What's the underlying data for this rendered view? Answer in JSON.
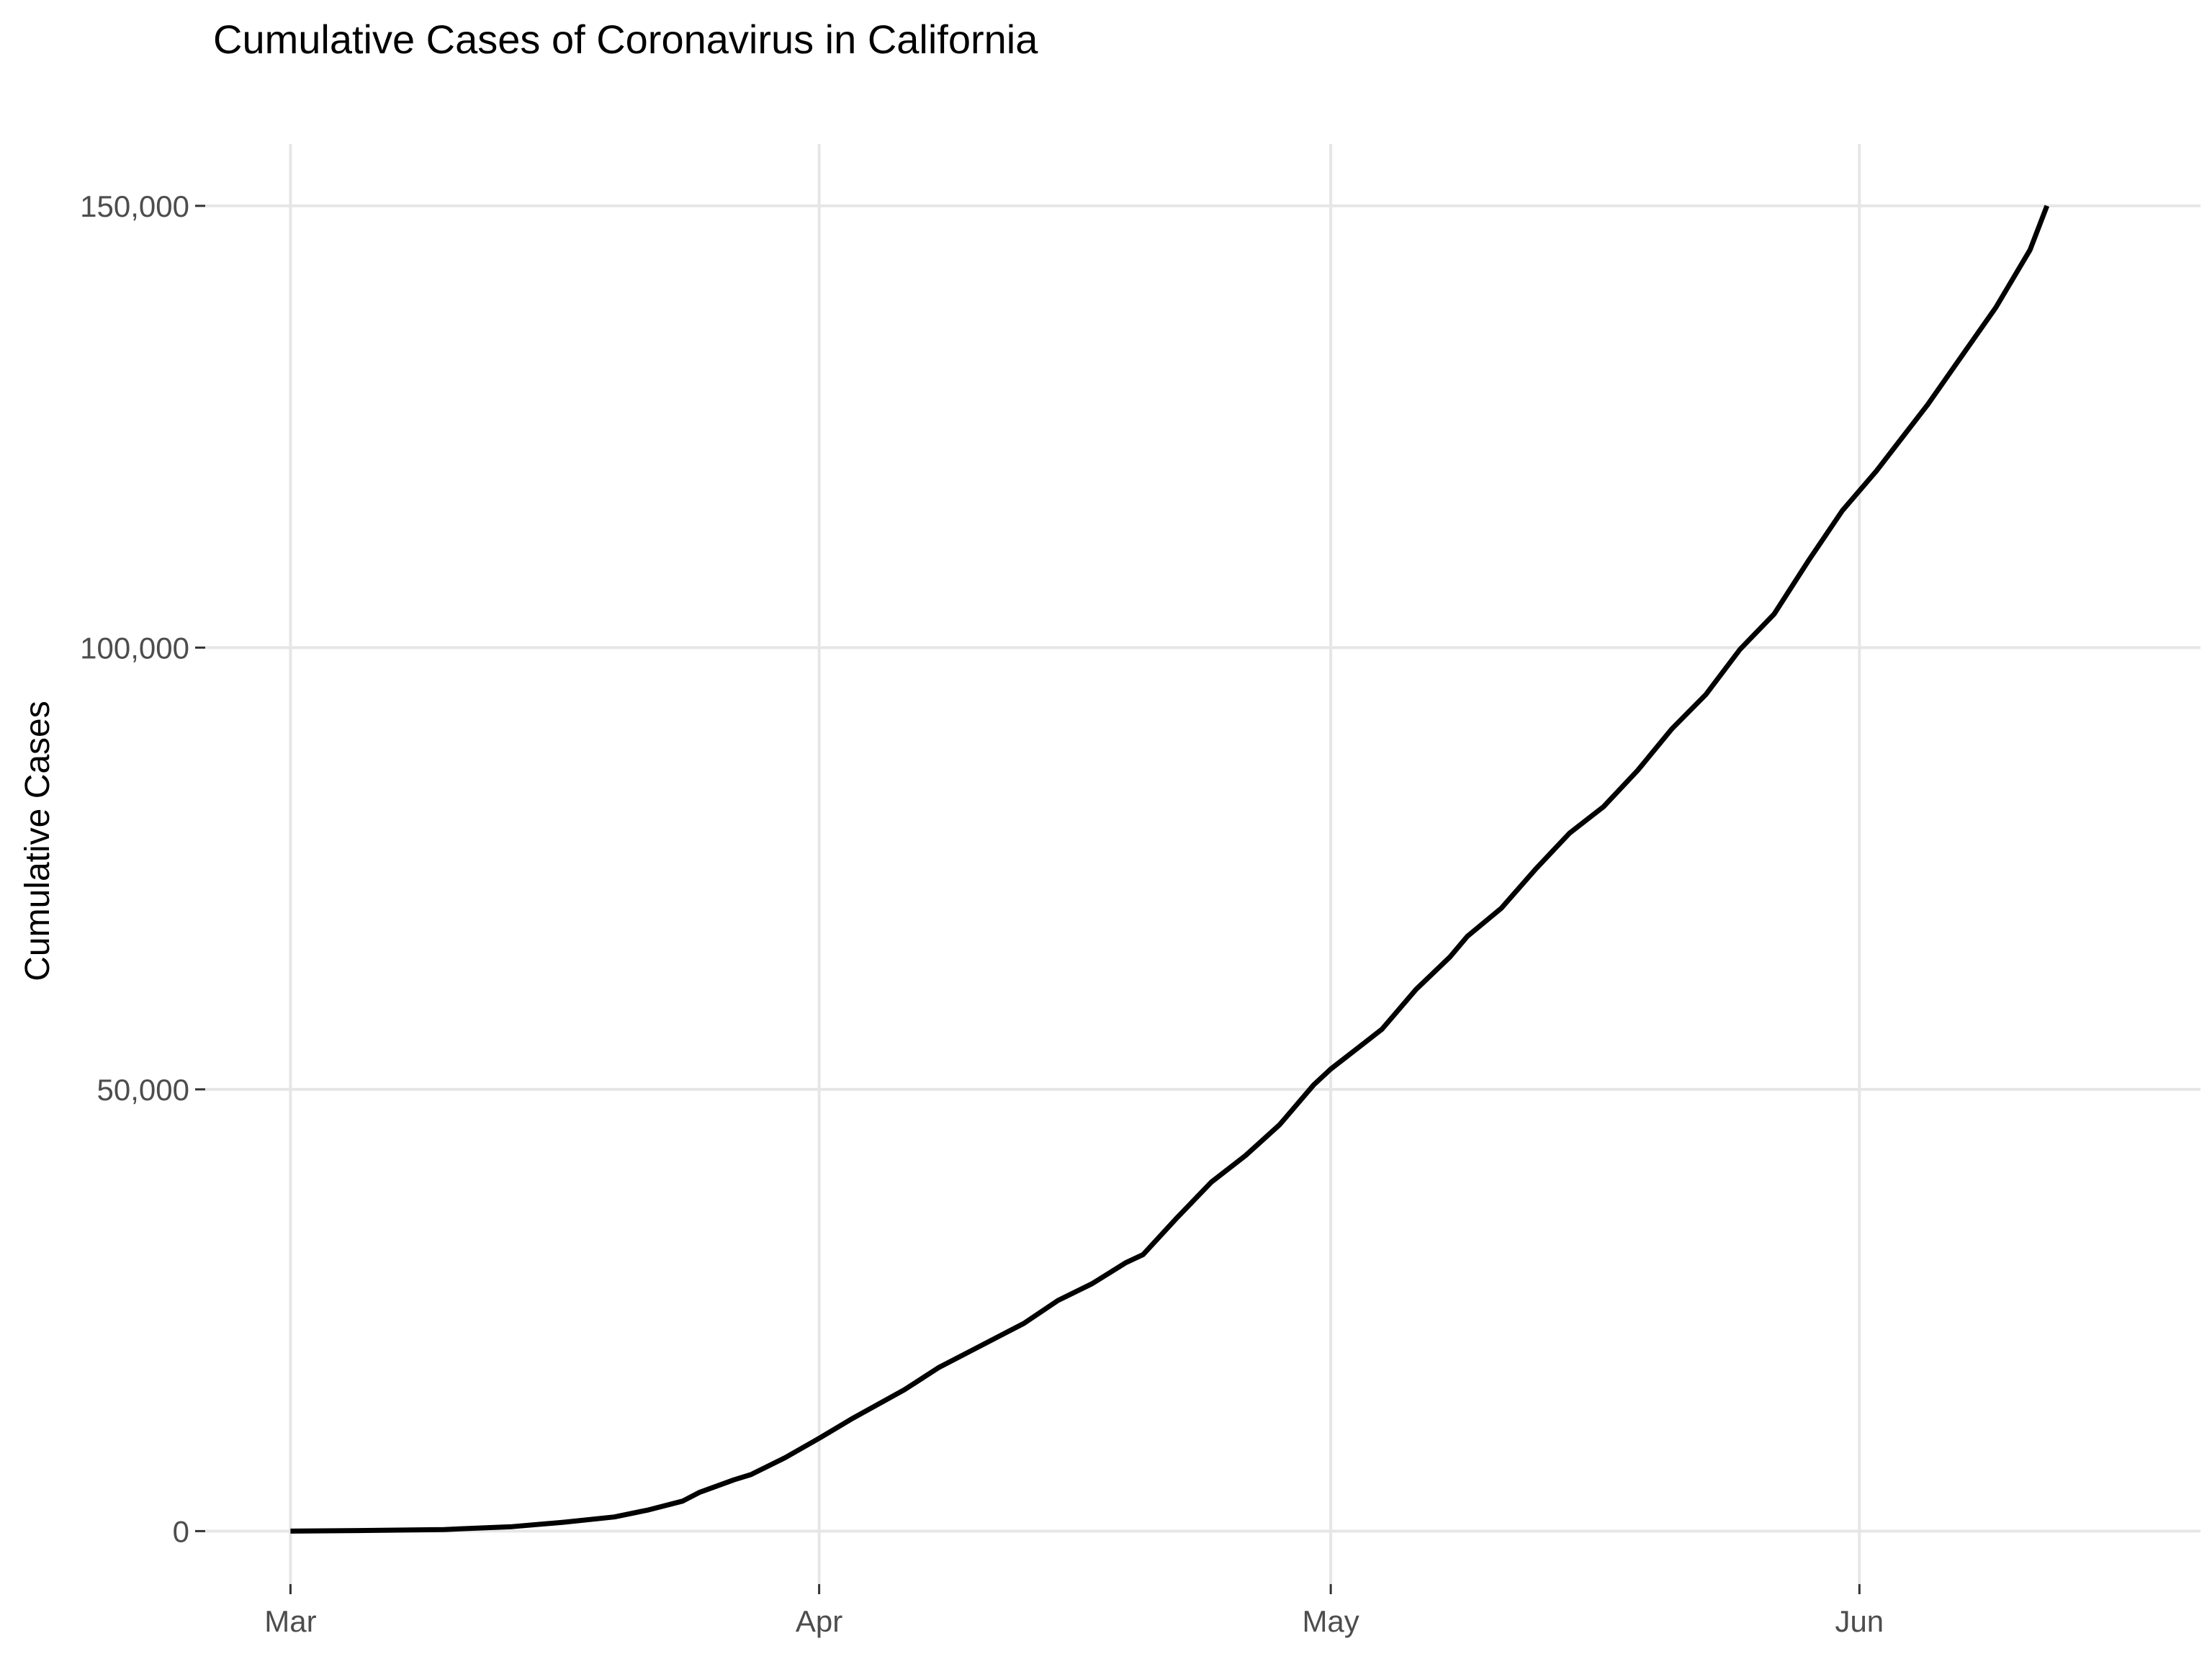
{
  "chart_data": {
    "type": "line",
    "title": "Cumulative Cases of Coronavirus in California",
    "xlabel": "",
    "ylabel": "Cumulative Cases",
    "xlim": [
      "2020-02-25",
      "2020-06-21"
    ],
    "ylim": [
      -6000,
      157000
    ],
    "x_ticks": [
      {
        "date": "2020-03-01",
        "label": "Mar"
      },
      {
        "date": "2020-04-01",
        "label": "Apr"
      },
      {
        "date": "2020-05-01",
        "label": "May"
      },
      {
        "date": "2020-06-01",
        "label": "Jun"
      }
    ],
    "y_ticks": [
      {
        "value": 0,
        "label": "0"
      },
      {
        "value": 50000,
        "label": "50,000"
      },
      {
        "value": 100000,
        "label": "100,000"
      },
      {
        "value": 150000,
        "label": "150,000"
      }
    ],
    "grid": true,
    "legend": "none",
    "line_color": "#000000",
    "grid_color": "#e6e6e6",
    "x": [
      "2020-03-01",
      "2020-03-05",
      "2020-03-10",
      "2020-03-14",
      "2020-03-17",
      "2020-03-20",
      "2020-03-22",
      "2020-03-24",
      "2020-03-25",
      "2020-03-27",
      "2020-03-28",
      "2020-03-30",
      "2020-04-01",
      "2020-04-03",
      "2020-04-06",
      "2020-04-08",
      "2020-04-10",
      "2020-04-13",
      "2020-04-15",
      "2020-04-17",
      "2020-04-19",
      "2020-04-20",
      "2020-04-22",
      "2020-04-24",
      "2020-04-26",
      "2020-04-28",
      "2020-04-30",
      "2020-05-01",
      "2020-05-03",
      "2020-05-04",
      "2020-05-06",
      "2020-05-08",
      "2020-05-09",
      "2020-05-11",
      "2020-05-13",
      "2020-05-15",
      "2020-05-17",
      "2020-05-19",
      "2020-05-21",
      "2020-05-23",
      "2020-05-25",
      "2020-05-27",
      "2020-05-29",
      "2020-05-31",
      "2020-06-02",
      "2020-06-03",
      "2020-06-05",
      "2020-06-07",
      "2020-06-09",
      "2020-06-11",
      "2020-06-12"
    ],
    "values": [
      0,
      60,
      180,
      500,
      1000,
      1600,
      2400,
      3400,
      4400,
      5800,
      6400,
      8300,
      10500,
      12800,
      16000,
      18500,
      20500,
      23500,
      26100,
      28000,
      30400,
      31300,
      35500,
      39500,
      42500,
      46000,
      50500,
      52300,
      55300,
      56800,
      61300,
      65000,
      67300,
      70500,
      74900,
      79000,
      82000,
      86100,
      90800,
      94700,
      99800,
      103800,
      109800,
      115500,
      120000,
      122500,
      127500,
      133000,
      138500,
      145000,
      150000
    ]
  }
}
